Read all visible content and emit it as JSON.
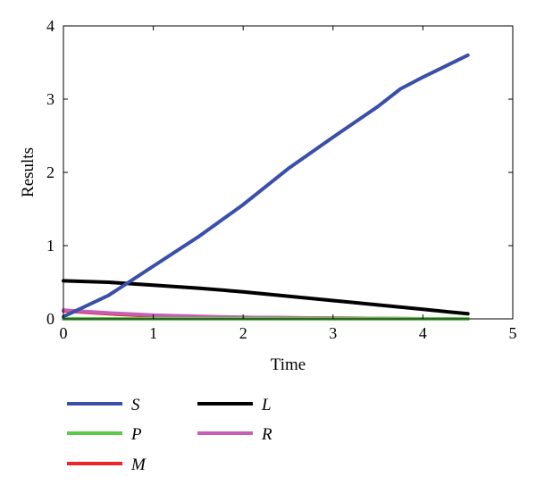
{
  "chart_data": {
    "type": "line",
    "title": "",
    "xlabel": "Time",
    "ylabel": "Results",
    "xlim": [
      0,
      5
    ],
    "ylim": [
      0,
      4
    ],
    "xticks": [
      "0",
      "1",
      "2",
      "3",
      "4",
      "5"
    ],
    "yticks": [
      "0",
      "1",
      "2",
      "3",
      "4"
    ],
    "grid": false,
    "legend_position": "below",
    "series": [
      {
        "name": "S",
        "color": "#3a4fa8",
        "x": [
          0,
          0.5,
          1,
          1.5,
          2,
          2.5,
          3,
          3.5,
          3.75,
          4,
          4.5
        ],
        "y": [
          0.03,
          0.32,
          0.72,
          1.12,
          1.56,
          2.05,
          2.48,
          2.9,
          3.14,
          3.3,
          3.6
        ]
      },
      {
        "name": "P",
        "color": "#5cc94b",
        "x": [
          0,
          1,
          2,
          3,
          4,
          4.5
        ],
        "y": [
          0.0,
          0.0,
          0.0,
          0.0,
          0.0,
          0.0
        ]
      },
      {
        "name": "M",
        "color": "#e8262c",
        "x": [
          0,
          0.5,
          1,
          2,
          3,
          4,
          4.5
        ],
        "y": [
          0.11,
          0.07,
          0.04,
          0.02,
          0.01,
          0.0,
          0.0
        ]
      },
      {
        "name": "L",
        "color": "#000000",
        "x": [
          0,
          0.5,
          1,
          1.5,
          2,
          2.5,
          3,
          3.5,
          4,
          4.5
        ],
        "y": [
          0.52,
          0.5,
          0.46,
          0.42,
          0.37,
          0.31,
          0.25,
          0.19,
          0.13,
          0.07
        ]
      },
      {
        "name": "R",
        "color": "#c65db6",
        "x": [
          0,
          0.5,
          1,
          2,
          3,
          4,
          4.5
        ],
        "y": [
          0.12,
          0.08,
          0.05,
          0.02,
          0.01,
          0.0,
          0.0
        ]
      }
    ]
  }
}
